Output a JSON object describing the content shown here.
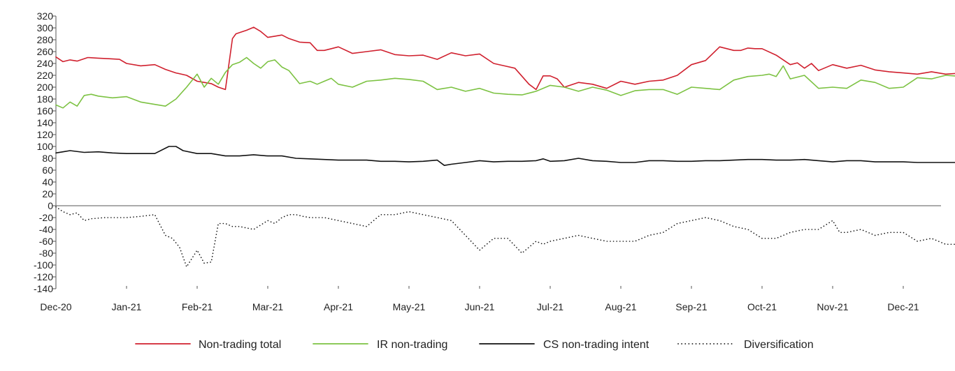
{
  "chart_data": {
    "type": "line",
    "title": "",
    "xlabel": "",
    "ylabel": "",
    "ylim": [
      -140,
      320
    ],
    "y_ticks": [
      320,
      300,
      280,
      260,
      240,
      220,
      200,
      180,
      160,
      140,
      120,
      100,
      80,
      60,
      40,
      20,
      0,
      -20,
      -40,
      -60,
      -80,
      -100,
      -120,
      -140
    ],
    "x_tick_labels": [
      "Dec-20",
      "Jan-21",
      "Feb-21",
      "Mar-21",
      "Apr-21",
      "May-21",
      "Jun-21",
      "Jul-21",
      "Aug-21",
      "Sep-21",
      "Oct-21",
      "Nov-21",
      "Dec-21"
    ],
    "x_range": [
      0,
      12.85
    ],
    "legend_position": "bottom",
    "grid": false,
    "series": [
      {
        "name": "Non-trading total",
        "color": "#d0202e",
        "style": "solid",
        "x": [
          0,
          0.1,
          0.2,
          0.3,
          0.45,
          0.6,
          0.75,
          0.9,
          1.0,
          1.2,
          1.4,
          1.55,
          1.7,
          1.85,
          2.0,
          2.1,
          2.2,
          2.3,
          2.4,
          2.5,
          2.55,
          2.6,
          2.7,
          2.8,
          2.9,
          3.0,
          3.1,
          3.2,
          3.3,
          3.45,
          3.6,
          3.7,
          3.8,
          3.9,
          4.0,
          4.2,
          4.4,
          4.6,
          4.8,
          5.0,
          5.2,
          5.4,
          5.6,
          5.8,
          6.0,
          6.2,
          6.35,
          6.5,
          6.7,
          6.8,
          6.9,
          7.0,
          7.1,
          7.2,
          7.4,
          7.6,
          7.8,
          8.0,
          8.2,
          8.4,
          8.6,
          8.8,
          9.0,
          9.2,
          9.4,
          9.6,
          9.7,
          9.8,
          9.9,
          10.0,
          10.2,
          10.4,
          10.5,
          10.6,
          10.7,
          10.8,
          11.0,
          11.2,
          11.4,
          11.6,
          11.8,
          12.0,
          12.2,
          12.4,
          12.6,
          12.85
        ],
        "y": [
          251,
          243,
          246,
          244,
          250,
          249,
          248,
          247,
          240,
          236,
          238,
          230,
          224,
          220,
          210,
          208,
          206,
          200,
          196,
          282,
          290,
          292,
          296,
          301,
          294,
          284,
          286,
          288,
          282,
          276,
          275,
          262,
          262,
          265,
          268,
          257,
          260,
          263,
          255,
          253,
          254,
          247,
          258,
          253,
          256,
          240,
          236,
          232,
          205,
          196,
          219,
          219,
          214,
          200,
          208,
          205,
          198,
          210,
          205,
          210,
          212,
          220,
          238,
          245,
          268,
          262,
          262,
          266,
          265,
          265,
          254,
          238,
          241,
          232,
          240,
          228,
          238,
          232,
          237,
          229,
          226,
          224,
          222,
          226,
          222,
          224
        ]
      },
      {
        "name": "IR non-trading",
        "color": "#7cc242",
        "style": "solid",
        "x": [
          0,
          0.1,
          0.2,
          0.3,
          0.4,
          0.5,
          0.6,
          0.8,
          1.0,
          1.2,
          1.4,
          1.55,
          1.7,
          1.85,
          2.0,
          2.1,
          2.2,
          2.3,
          2.4,
          2.5,
          2.6,
          2.7,
          2.8,
          2.9,
          3.0,
          3.1,
          3.2,
          3.3,
          3.45,
          3.6,
          3.7,
          3.8,
          3.9,
          4.0,
          4.2,
          4.4,
          4.6,
          4.8,
          5.0,
          5.2,
          5.4,
          5.6,
          5.8,
          6.0,
          6.2,
          6.4,
          6.6,
          6.8,
          7.0,
          7.2,
          7.4,
          7.6,
          7.8,
          8.0,
          8.2,
          8.4,
          8.6,
          8.8,
          9.0,
          9.2,
          9.4,
          9.6,
          9.8,
          10.0,
          10.1,
          10.2,
          10.3,
          10.4,
          10.6,
          10.8,
          11.0,
          11.2,
          11.4,
          11.6,
          11.8,
          12.0,
          12.2,
          12.4,
          12.6,
          12.85
        ],
        "y": [
          170,
          165,
          175,
          168,
          186,
          188,
          185,
          182,
          184,
          175,
          171,
          168,
          180,
          200,
          222,
          200,
          215,
          205,
          225,
          238,
          242,
          250,
          240,
          232,
          243,
          246,
          234,
          228,
          206,
          210,
          205,
          210,
          215,
          205,
          200,
          210,
          212,
          215,
          213,
          210,
          196,
          200,
          193,
          198,
          190,
          188,
          187,
          193,
          203,
          200,
          193,
          200,
          195,
          186,
          194,
          196,
          196,
          188,
          200,
          198,
          196,
          212,
          218,
          220,
          222,
          218,
          236,
          214,
          220,
          198,
          200,
          198,
          212,
          208,
          198,
          200,
          216,
          214,
          220,
          218
        ]
      },
      {
        "name": "CS non-trading intent",
        "color": "#111111",
        "style": "solid",
        "x": [
          0,
          0.1,
          0.2,
          0.4,
          0.6,
          0.8,
          1.0,
          1.2,
          1.4,
          1.6,
          1.7,
          1.8,
          2.0,
          2.2,
          2.4,
          2.6,
          2.8,
          3.0,
          3.2,
          3.4,
          3.6,
          3.8,
          4.0,
          4.2,
          4.4,
          4.6,
          4.8,
          5.0,
          5.2,
          5.4,
          5.5,
          5.6,
          5.8,
          6.0,
          6.2,
          6.4,
          6.6,
          6.8,
          6.9,
          7.0,
          7.2,
          7.4,
          7.6,
          7.8,
          8.0,
          8.2,
          8.4,
          8.6,
          8.8,
          9.0,
          9.2,
          9.4,
          9.6,
          9.8,
          10.0,
          10.2,
          10.4,
          10.6,
          10.8,
          11.0,
          11.2,
          11.4,
          11.6,
          11.8,
          12.0,
          12.2,
          12.4,
          12.6,
          12.85
        ],
        "y": [
          89,
          91,
          93,
          90,
          91,
          89,
          88,
          88,
          88,
          100,
          100,
          93,
          88,
          88,
          84,
          84,
          86,
          84,
          84,
          80,
          79,
          78,
          77,
          77,
          77,
          75,
          75,
          74,
          75,
          77,
          68,
          70,
          73,
          76,
          74,
          75,
          75,
          76,
          79,
          75,
          76,
          80,
          76,
          75,
          73,
          73,
          76,
          76,
          75,
          75,
          76,
          76,
          77,
          78,
          78,
          77,
          77,
          78,
          76,
          74,
          76,
          76,
          74,
          74,
          74,
          73,
          73,
          73,
          73
        ]
      },
      {
        "name": "Diversification",
        "color": "#111111",
        "style": "dotted",
        "x": [
          0,
          0.1,
          0.2,
          0.3,
          0.4,
          0.5,
          0.7,
          0.9,
          1.0,
          1.2,
          1.4,
          1.55,
          1.65,
          1.75,
          1.85,
          2.0,
          2.1,
          2.2,
          2.3,
          2.4,
          2.5,
          2.6,
          2.8,
          3.0,
          3.1,
          3.2,
          3.3,
          3.4,
          3.5,
          3.6,
          3.8,
          4.0,
          4.2,
          4.4,
          4.6,
          4.8,
          5.0,
          5.2,
          5.4,
          5.6,
          5.8,
          6.0,
          6.2,
          6.4,
          6.6,
          6.8,
          6.9,
          7.0,
          7.2,
          7.4,
          7.6,
          7.8,
          8.0,
          8.2,
          8.4,
          8.6,
          8.8,
          9.0,
          9.2,
          9.4,
          9.6,
          9.8,
          10.0,
          10.2,
          10.4,
          10.6,
          10.8,
          11.0,
          11.1,
          11.2,
          11.4,
          11.6,
          11.8,
          12.0,
          12.2,
          12.4,
          12.6,
          12.85
        ],
        "y": [
          -2,
          -10,
          -15,
          -12,
          -25,
          -22,
          -20,
          -20,
          -20,
          -18,
          -15,
          -50,
          -55,
          -70,
          -103,
          -75,
          -97,
          -95,
          -30,
          -30,
          -35,
          -35,
          -40,
          -25,
          -30,
          -20,
          -15,
          -15,
          -18,
          -20,
          -20,
          -25,
          -30,
          -35,
          -15,
          -15,
          -10,
          -15,
          -20,
          -25,
          -50,
          -75,
          -55,
          -55,
          -80,
          -60,
          -65,
          -60,
          -55,
          -50,
          -55,
          -60,
          -60,
          -60,
          -50,
          -45,
          -30,
          -25,
          -20,
          -25,
          -35,
          -40,
          -55,
          -55,
          -45,
          -40,
          -40,
          -25,
          -45,
          -45,
          -40,
          -50,
          -45,
          -45,
          -60,
          -55,
          -65,
          -65
        ]
      }
    ]
  }
}
